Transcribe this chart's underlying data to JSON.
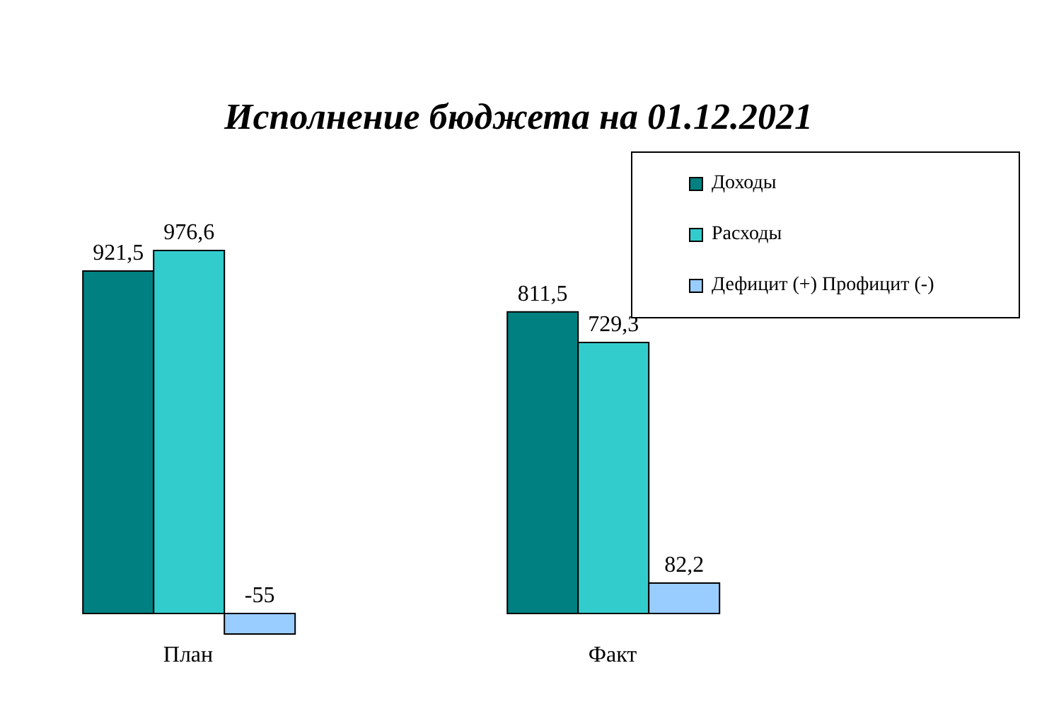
{
  "chart_data": {
    "type": "bar",
    "title": "Исполнение бюджета на 01.12.2021",
    "categories": [
      "План",
      "Факт"
    ],
    "series": [
      {
        "name": "Доходы",
        "color": "#008080",
        "values": [
          921.5,
          811.5
        ],
        "value_labels": [
          "921,5",
          "811,5"
        ]
      },
      {
        "name": "Расходы",
        "color": "#33cccc",
        "values": [
          976.6,
          729.3
        ],
        "value_labels": [
          "976,6",
          "729,3"
        ]
      },
      {
        "name": "Дефицит (+) Профицит (-)",
        "color": "#99ccff",
        "values": [
          -55,
          82.2
        ],
        "value_labels": [
          "-55",
          "82,2"
        ]
      }
    ],
    "legend": "top right"
  }
}
